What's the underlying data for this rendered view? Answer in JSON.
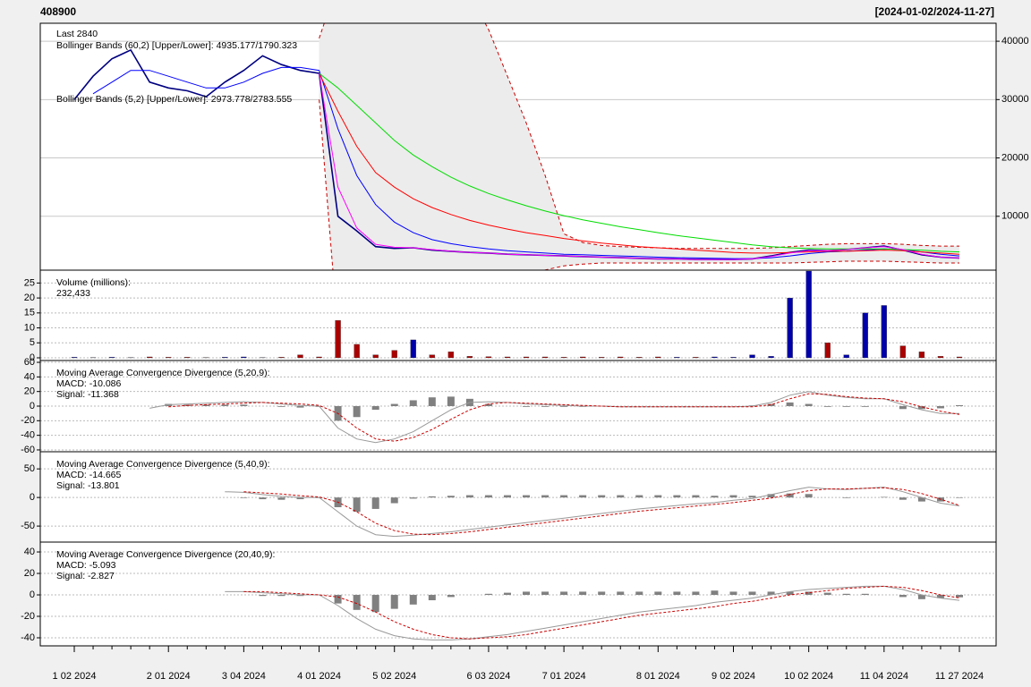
{
  "chart_data": [
    {
      "type": "price",
      "title": "408900",
      "subtitle": "[2024-01-02/2024-11-27]",
      "categories": [
        "1 02 2024",
        null,
        null,
        null,
        null,
        "2 01 2024",
        null,
        null,
        null,
        "3 04 2024",
        null,
        null,
        null,
        "4 01 2024",
        null,
        null,
        null,
        "5 02 2024",
        null,
        null,
        null,
        null,
        "6 03 2024",
        null,
        null,
        null,
        "7 01 2024",
        null,
        null,
        null,
        null,
        "8 01 2024",
        null,
        null,
        null,
        "9 02 2024",
        null,
        null,
        null,
        "10 02 2024",
        null,
        null,
        null,
        "11 04 2024",
        null,
        null,
        null,
        "11 27 2024"
      ],
      "ylim": [
        770,
        43080
      ],
      "yticks": [
        10000,
        20000,
        30000,
        40000
      ],
      "y_axis": "right",
      "grid": true,
      "legend": [
        {
          "text": "Last 2840",
          "color": "#0000cc"
        },
        {
          "text": "Bollinger Bands (60,2) [Upper/Lower]: 4935.177/1790.323",
          "color": "#cc0000"
        },
        {
          "text": "Bollinger Bands (5,2) [Upper/Lower]: 2973.778/2783.555",
          "color": "#cc0000"
        }
      ],
      "series": [
        {
          "color": "#000080",
          "values": [
            30000,
            34000,
            37000,
            38500,
            33000,
            32000,
            31500,
            30500,
            33000,
            35000,
            37500,
            36000,
            35000,
            34500,
            10000,
            7500,
            4800,
            4500,
            4600,
            4200,
            4000,
            3800,
            3700,
            3500,
            3400,
            3300,
            3200,
            3100,
            3000,
            2900,
            2800,
            2700,
            2700,
            2600,
            2600,
            2600,
            2700,
            3200,
            3800,
            4200,
            4100,
            4300,
            4600,
            4900,
            4200,
            3400,
            3000,
            2840
          ]
        },
        {
          "color": "#0000ff",
          "values": [
            null,
            31000,
            33000,
            35000,
            35000,
            34000,
            33000,
            32000,
            32000,
            33000,
            34500,
            35500,
            35500,
            35000,
            25000,
            17000,
            12000,
            9000,
            7200,
            6000,
            5300,
            4800,
            4400,
            4100,
            3900,
            3700,
            3500,
            3400,
            3300,
            3200,
            3100,
            3000,
            2900,
            2850,
            2800,
            2750,
            2750,
            2900,
            3200,
            3600,
            3900,
            4000,
            4200,
            4400,
            4300,
            3900,
            3500,
            3200
          ]
        },
        {
          "color": "#ff0000",
          "values": [
            null,
            null,
            null,
            null,
            null,
            null,
            null,
            null,
            null,
            null,
            null,
            null,
            null,
            34500,
            28000,
            22000,
            17500,
            15000,
            13000,
            11500,
            10300,
            9300,
            8500,
            7800,
            7200,
            6700,
            6200,
            5800,
            5400,
            5100,
            4800,
            4600,
            4400,
            4200,
            4000,
            3800,
            3700,
            3700,
            3800,
            3900,
            4000,
            4000,
            4100,
            4200,
            4100,
            3900,
            3700,
            3500
          ]
        },
        {
          "color": "#00dd00",
          "values": [
            null,
            null,
            null,
            null,
            null,
            null,
            null,
            null,
            null,
            null,
            null,
            null,
            null,
            34500,
            32000,
            29000,
            26000,
            23000,
            20500,
            18500,
            16700,
            15200,
            13900,
            12800,
            11800,
            10900,
            10100,
            9400,
            8800,
            8200,
            7700,
            7200,
            6700,
            6300,
            5900,
            5500,
            5100,
            4800,
            4600,
            4500,
            4400,
            4400,
            4400,
            4400,
            4300,
            4200,
            4000,
            3900
          ]
        },
        {
          "color": "#ff00ff",
          "values": [
            null,
            null,
            null,
            null,
            null,
            null,
            null,
            null,
            null,
            null,
            null,
            null,
            null,
            34500,
            15000,
            8000,
            5200,
            4700,
            4600,
            4300,
            4000,
            3800,
            3700,
            3500,
            3400,
            3300,
            3200,
            3100,
            3000,
            2900,
            2800,
            2700,
            2700,
            2600,
            2600,
            2600,
            2700,
            3100,
            3700,
            4100,
            4100,
            4300,
            4600,
            4800,
            4300,
            3500,
            3000,
            2850
          ]
        }
      ],
      "bands": {
        "color": "#cc0000",
        "fill": "#ececec",
        "upper": [
          null,
          null,
          null,
          null,
          null,
          null,
          null,
          null,
          null,
          null,
          null,
          null,
          null,
          40500,
          50000,
          56000,
          58000,
          58000,
          57000,
          55000,
          52000,
          48000,
          42000,
          34000,
          26000,
          17000,
          7000,
          5500,
          5000,
          4800,
          4700,
          4600,
          4500,
          4500,
          4500,
          4500,
          4500,
          4600,
          4800,
          5000,
          5200,
          5300,
          5300,
          5300,
          5200,
          5000,
          4900,
          4900
        ],
        "lower": [
          null,
          null,
          null,
          null,
          null,
          null,
          null,
          null,
          null,
          null,
          null,
          null,
          null,
          30000,
          -10000,
          -15000,
          -17000,
          -17000,
          -16000,
          -14000,
          -12000,
          -9000,
          -6000,
          -3000,
          -500,
          800,
          1500,
          1800,
          2000,
          2000,
          2000,
          2000,
          2000,
          2000,
          2000,
          2000,
          2000,
          2000,
          2000,
          2100,
          2200,
          2300,
          2300,
          2300,
          2200,
          2100,
          2000,
          2000
        ]
      }
    },
    {
      "type": "volume",
      "ylim": [
        -0.9,
        29.3
      ],
      "yticks": [
        0,
        5,
        10,
        15,
        20,
        25
      ],
      "y_axis": "left",
      "grid": true,
      "legend": [
        {
          "text": "Volume (millions):",
          "color": "#000000"
        },
        {
          "text": "232,433",
          "color": "#0000cc"
        }
      ],
      "colors": {
        "up": "#0000aa",
        "down": "#aa0000"
      },
      "values": [
        0.2,
        0.1,
        0.2,
        0.1,
        0.3,
        0.2,
        0.2,
        0.1,
        0.2,
        0.3,
        0.1,
        0.2,
        1,
        0.3,
        12.5,
        4.5,
        1,
        2.5,
        6,
        1,
        2,
        0.5,
        0.4,
        0.3,
        0.3,
        0.3,
        0.2,
        0.3,
        0.2,
        0.3,
        0.2,
        0.3,
        0.2,
        0.2,
        0.3,
        0.2,
        1,
        0.5,
        20,
        29,
        5,
        1,
        15,
        17.5,
        4,
        2,
        0.5,
        0.3
      ]
    },
    {
      "type": "macd",
      "ylim": [
        -62.5,
        62.5
      ],
      "yticks": [
        60,
        40,
        20,
        0,
        -20,
        -40,
        -60
      ],
      "y_axis": "left",
      "grid": true,
      "legend": [
        {
          "text": "Moving Average Convergence Divergence (5,20,9):",
          "color": "#000000"
        },
        {
          "text": "MACD: -10.086",
          "color": "#aaaaaa"
        },
        {
          "text": "Signal: -11.368",
          "color": "#cc0000"
        }
      ],
      "series": [
        {
          "color": "#999999",
          "values": [
            null,
            null,
            null,
            null,
            -3,
            2,
            3,
            4,
            5,
            6,
            5,
            3,
            1,
            0,
            -30,
            -45,
            -50,
            -45,
            -35,
            -20,
            -5,
            5,
            6,
            5,
            3,
            2,
            1,
            0,
            0,
            -1,
            -1,
            -1,
            -1,
            -1,
            -1,
            -1,
            0,
            5,
            15,
            20,
            15,
            12,
            10,
            10,
            2,
            -5,
            -10,
            -10.086
          ]
        },
        {
          "color": "#cc0000",
          "dashed": true,
          "values": [
            null,
            null,
            null,
            null,
            null,
            -1,
            1,
            2,
            3,
            4,
            5,
            4,
            3,
            1,
            -10,
            -30,
            -45,
            -48,
            -43,
            -32,
            -18,
            -5,
            3,
            5,
            4,
            3,
            2,
            1,
            0,
            -1,
            -1,
            -1,
            -1,
            -1,
            -1,
            -1,
            -1,
            2,
            10,
            17,
            16,
            13,
            11,
            10,
            6,
            -1,
            -7,
            -11.368
          ]
        }
      ],
      "histogram": {
        "color": "#808080",
        "values": [
          null,
          null,
          null,
          null,
          null,
          3,
          2,
          2,
          2,
          2,
          0,
          -1,
          -2,
          -1,
          -20,
          -15,
          -5,
          3,
          8,
          12,
          13,
          10,
          3,
          0,
          -1,
          -1,
          -1,
          -1,
          0,
          0,
          0,
          0,
          0,
          0,
          0,
          0,
          1,
          3,
          5,
          3,
          -1,
          -1,
          -1,
          0,
          -4,
          -4,
          -3,
          1.282
        ]
      }
    },
    {
      "type": "macd",
      "ylim": [
        -78,
        80
      ],
      "yticks": [
        50,
        0,
        -50
      ],
      "y_axis": "left",
      "grid": true,
      "legend": [
        {
          "text": "Moving Average Convergence Divergence (5,40,9):",
          "color": "#000000"
        },
        {
          "text": "MACD: -14.665",
          "color": "#aaaaaa"
        },
        {
          "text": "Signal: -13.801",
          "color": "#cc0000"
        }
      ],
      "series": [
        {
          "color": "#999999",
          "values": [
            null,
            null,
            null,
            null,
            null,
            null,
            null,
            null,
            10,
            9,
            5,
            2,
            0,
            0,
            -25,
            -50,
            -65,
            -68,
            -66,
            -63,
            -60,
            -56,
            -52,
            -48,
            -44,
            -40,
            -36,
            -32,
            -28,
            -24,
            -20,
            -17,
            -14,
            -11,
            -9,
            -5,
            -2,
            5,
            12,
            18,
            15,
            14,
            16,
            18,
            10,
            0,
            -10,
            -14.665
          ]
        },
        {
          "color": "#cc0000",
          "dashed": true,
          "values": [
            null,
            null,
            null,
            null,
            null,
            null,
            null,
            null,
            null,
            10,
            8,
            6,
            3,
            1,
            -8,
            -25,
            -45,
            -58,
            -64,
            -65,
            -63,
            -60,
            -56,
            -52,
            -48,
            -44,
            -40,
            -36,
            -32,
            -28,
            -24,
            -21,
            -18,
            -15,
            -12,
            -9,
            -5,
            -1,
            5,
            12,
            15,
            15,
            16,
            17,
            14,
            7,
            -3,
            -13.801
          ]
        }
      ],
      "histogram": {
        "color": "#808080",
        "values": [
          null,
          null,
          null,
          null,
          null,
          null,
          null,
          null,
          null,
          -1,
          -3,
          -4,
          -3,
          -1,
          -17,
          -25,
          -20,
          -10,
          -2,
          2,
          3,
          4,
          4,
          4,
          4,
          4,
          4,
          4,
          4,
          4,
          4,
          4,
          4,
          4,
          3,
          4,
          3,
          6,
          7,
          6,
          0,
          -1,
          0,
          1,
          -4,
          -7,
          -7,
          -0.864
        ]
      }
    },
    {
      "type": "macd",
      "ylim": [
        -47.5,
        49.2
      ],
      "yticks": [
        40,
        20,
        0,
        -20,
        -40
      ],
      "y_axis": "left",
      "grid": true,
      "legend": [
        {
          "text": "Moving Average Convergence Divergence (20,40,9):",
          "color": "#000000"
        },
        {
          "text": "MACD: -5.093",
          "color": "#aaaaaa"
        },
        {
          "text": "Signal: -2.827",
          "color": "#cc0000"
        }
      ],
      "series": [
        {
          "color": "#999999",
          "values": [
            null,
            null,
            null,
            null,
            null,
            null,
            null,
            null,
            3,
            3,
            2,
            1,
            0,
            0,
            -10,
            -22,
            -32,
            -38,
            -41,
            -42,
            -42,
            -41,
            -39,
            -37,
            -34,
            -31,
            -28,
            -25,
            -22,
            -19,
            -16,
            -14,
            -12,
            -10,
            -7,
            -5,
            -3,
            0,
            3,
            5,
            6,
            7,
            8,
            8,
            5,
            0,
            -3,
            -5.093
          ]
        },
        {
          "color": "#cc0000",
          "dashed": true,
          "values": [
            null,
            null,
            null,
            null,
            null,
            null,
            null,
            null,
            null,
            3,
            3,
            2,
            1,
            0,
            -2,
            -8,
            -16,
            -25,
            -32,
            -37,
            -40,
            -41,
            -40,
            -39,
            -37,
            -34,
            -31,
            -28,
            -25,
            -22,
            -19,
            -17,
            -15,
            -13,
            -11,
            -8,
            -6,
            -3,
            0,
            2,
            4,
            6,
            7,
            8,
            7,
            4,
            0,
            -2.827
          ]
        }
      ],
      "histogram": {
        "color": "#808080",
        "values": [
          null,
          null,
          null,
          null,
          null,
          null,
          null,
          null,
          null,
          0,
          -1,
          -1,
          -1,
          0,
          -8,
          -14,
          -16,
          -13,
          -9,
          -5,
          -2,
          0,
          1,
          2,
          3,
          3,
          3,
          3,
          3,
          3,
          3,
          3,
          3,
          3,
          4,
          3,
          3,
          3,
          3,
          3,
          2,
          1,
          1,
          0,
          -2,
          -4,
          -3,
          -2.266
        ]
      }
    }
  ]
}
